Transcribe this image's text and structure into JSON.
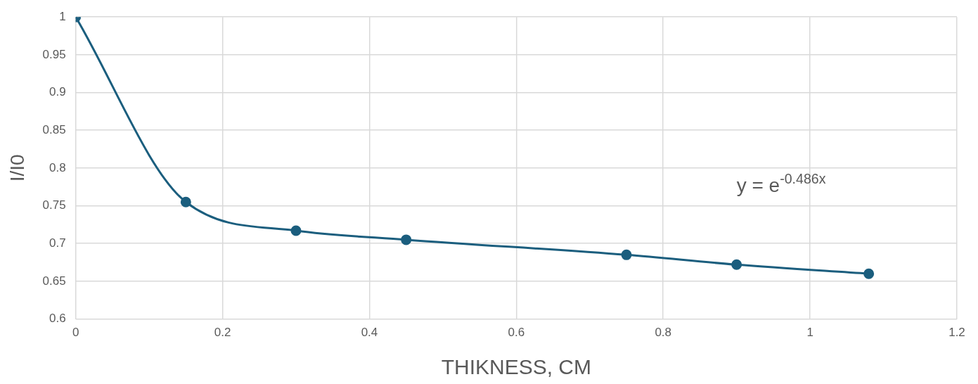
{
  "chart_data": {
    "type": "line",
    "xlabel": "THIKNESS, CM",
    "ylabel": "I/I0",
    "x": [
      0,
      0.15,
      0.3,
      0.45,
      0.75,
      0.9,
      1.08
    ],
    "series": [
      {
        "color": "#1b5e7e",
        "values": [
          1,
          0.755,
          0.717,
          0.705,
          0.685,
          0.672,
          0.66
        ]
      }
    ],
    "xlim": [
      0,
      1.2
    ],
    "xticks": [
      0,
      0.2,
      0.4,
      0.6,
      0.8,
      1,
      1.2
    ],
    "ylim": [
      0.6,
      1
    ],
    "yticks": [
      0.6,
      0.65,
      0.7,
      0.75,
      0.8,
      0.85,
      0.9,
      0.95,
      1
    ],
    "grid": true,
    "legend": false,
    "marker": "circle",
    "line_style": "solid",
    "annotations": [
      "y = e$^{-0.486x}$"
    ]
  }
}
